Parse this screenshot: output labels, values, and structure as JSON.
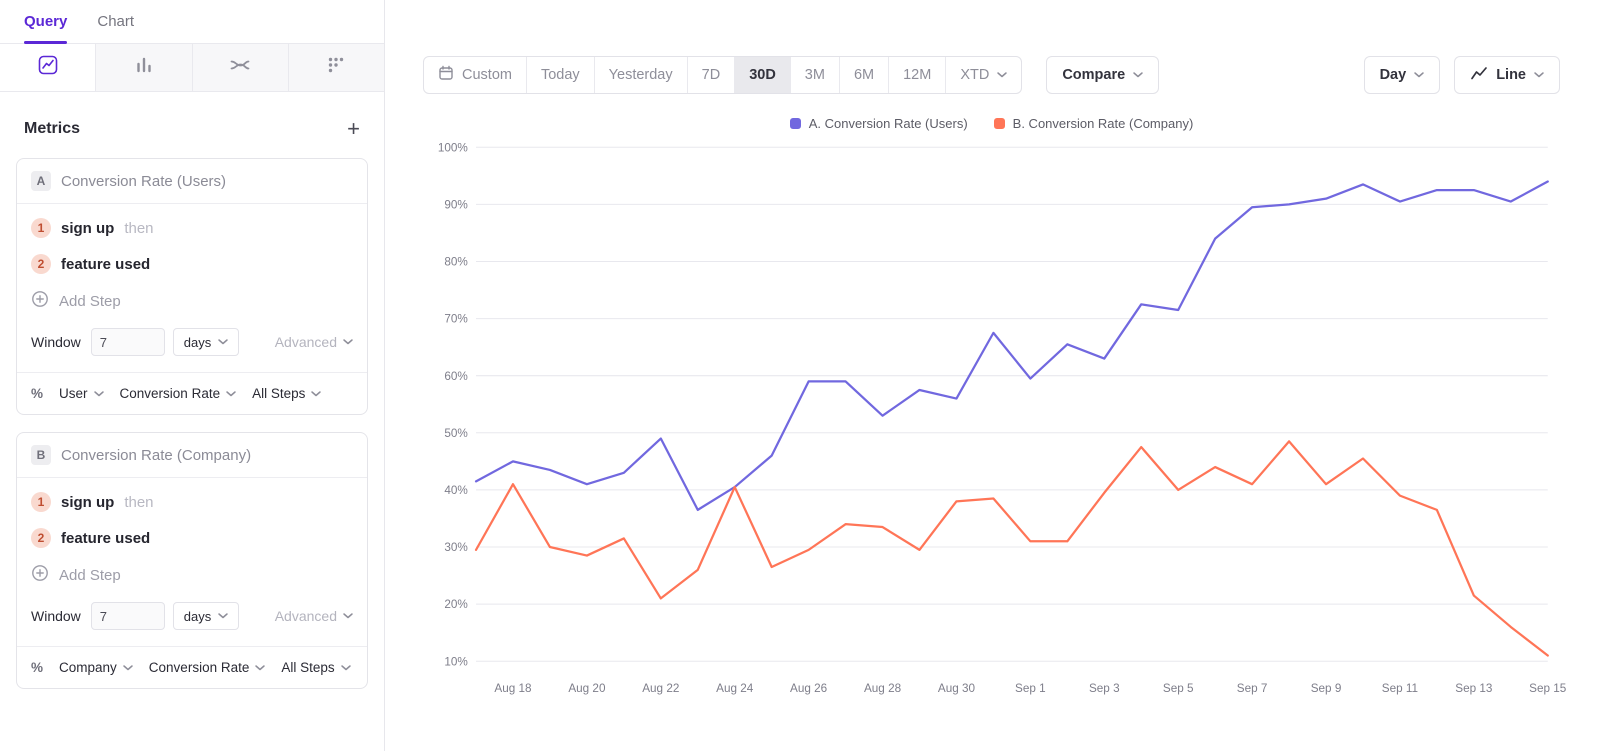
{
  "sidebar": {
    "tabs": [
      {
        "label": "Query",
        "active": true
      },
      {
        "label": "Chart",
        "active": false
      }
    ],
    "metrics_title": "Metrics",
    "add_metric_label": "+",
    "cards": [
      {
        "badge": "A",
        "title": "Conversion Rate (Users)",
        "steps": [
          {
            "num": "1",
            "label": "sign up",
            "suffix": "then"
          },
          {
            "num": "2",
            "label": "feature used",
            "suffix": ""
          }
        ],
        "add_step_label": "Add Step",
        "window_label": "Window",
        "window_value": "7",
        "window_unit": "days",
        "advanced_label": "Advanced",
        "footer": {
          "format": "%",
          "entity": "User",
          "measure": "Conversion Rate",
          "scope": "All Steps"
        }
      },
      {
        "badge": "B",
        "title": "Conversion Rate (Company)",
        "steps": [
          {
            "num": "1",
            "label": "sign up",
            "suffix": "then"
          },
          {
            "num": "2",
            "label": "feature used",
            "suffix": ""
          }
        ],
        "add_step_label": "Add Step",
        "window_label": "Window",
        "window_value": "7",
        "window_unit": "days",
        "advanced_label": "Advanced",
        "footer": {
          "format": "%",
          "entity": "Company",
          "measure": "Conversion Rate",
          "scope": "All Steps"
        }
      }
    ]
  },
  "toolbar": {
    "ranges": [
      {
        "label": "Custom",
        "active": false
      },
      {
        "label": "Today",
        "active": false
      },
      {
        "label": "Yesterday",
        "active": false
      },
      {
        "label": "7D",
        "active": false
      },
      {
        "label": "30D",
        "active": true
      },
      {
        "label": "3M",
        "active": false
      },
      {
        "label": "6M",
        "active": false
      },
      {
        "label": "12M",
        "active": false
      },
      {
        "label": "XTD",
        "active": false
      }
    ],
    "compare_label": "Compare",
    "granularity_label": "Day",
    "chart_type_label": "Line"
  },
  "icons": {
    "report_tabs": [
      "insights-icon",
      "bars-icon",
      "flows-icon",
      "dots-grid-icon"
    ],
    "range_custom": "calendar-icon",
    "chart_type_button": "line-chart-icon",
    "add_step": "plus-circle-icon",
    "dropdowns": "chevron-down-icon"
  },
  "colors": {
    "accent_purple": "#5b28d6",
    "series_a": "#7168DF",
    "series_b": "#FF7557",
    "grid": "#e8e8ee"
  },
  "chart_data": {
    "type": "line",
    "title": "",
    "xlabel": "",
    "ylabel": "",
    "y_unit": "%",
    "ylim": [
      10,
      100
    ],
    "yticks": [
      10,
      20,
      30,
      40,
      50,
      60,
      70,
      80,
      90,
      100
    ],
    "grid": true,
    "legend_position": "top-center",
    "x": [
      "Aug 17",
      "Aug 18",
      "Aug 19",
      "Aug 20",
      "Aug 21",
      "Aug 22",
      "Aug 23",
      "Aug 24",
      "Aug 25",
      "Aug 26",
      "Aug 27",
      "Aug 28",
      "Aug 29",
      "Aug 30",
      "Aug 31",
      "Sep 1",
      "Sep 2",
      "Sep 3",
      "Sep 4",
      "Sep 5",
      "Sep 6",
      "Sep 7",
      "Sep 8",
      "Sep 9",
      "Sep 10",
      "Sep 11",
      "Sep 12",
      "Sep 13",
      "Sep 14",
      "Sep 15"
    ],
    "x_ticks_shown": [
      "Aug 18",
      "Aug 20",
      "Aug 22",
      "Aug 24",
      "Aug 26",
      "Aug 28",
      "Aug 30",
      "Sep 1",
      "Sep 3",
      "Sep 5",
      "Sep 7",
      "Sep 9",
      "Sep 11",
      "Sep 13",
      "Sep 15"
    ],
    "series": [
      {
        "name": "A. Conversion Rate (Users)",
        "color": "#7168DF",
        "values": [
          41.5,
          45,
          43.5,
          41,
          43,
          49,
          36.5,
          40.5,
          46,
          59,
          59,
          53,
          57.5,
          56,
          67.5,
          59.5,
          65.5,
          63,
          72.5,
          71.5,
          84,
          89.5,
          90,
          91,
          93.5,
          90.5,
          92.5,
          92.5,
          90.5,
          94
        ]
      },
      {
        "name": "B. Conversion Rate (Company)",
        "color": "#FF7557",
        "values": [
          29.5,
          41,
          30,
          28.5,
          31.5,
          21,
          26,
          40.5,
          26.5,
          29.5,
          34,
          33.5,
          29.5,
          38,
          38.5,
          31,
          31,
          39.5,
          47.5,
          40,
          44,
          41,
          48.5,
          41,
          45.5,
          39,
          36.5,
          21.5,
          16,
          11
        ]
      }
    ]
  }
}
